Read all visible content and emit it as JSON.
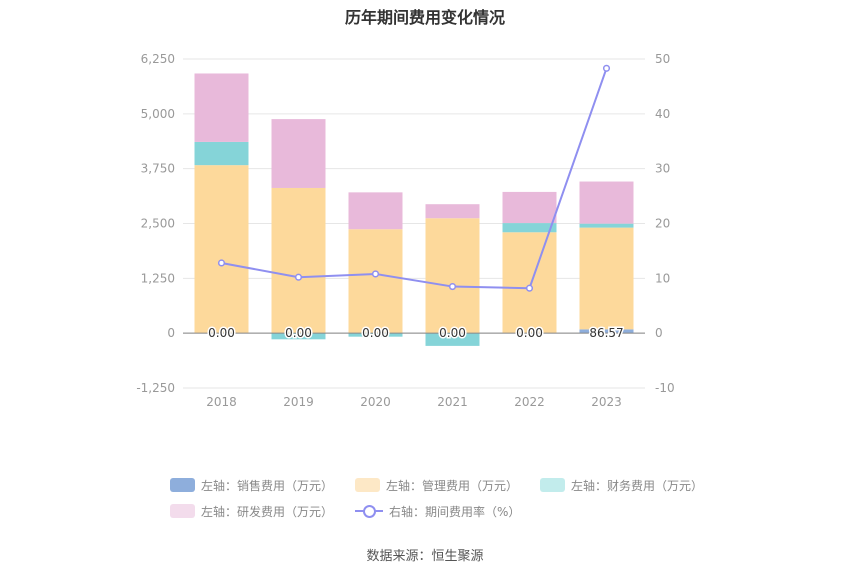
{
  "chart_data": {
    "type": "bar",
    "title": "历年期间费用变化情况",
    "categories": [
      "2018",
      "2019",
      "2020",
      "2021",
      "2022",
      "2023"
    ],
    "stacked": true,
    "series": [
      {
        "name": "左轴：销售费用（万元）",
        "axis": "left",
        "color": "#8eaedc",
        "values": [
          0,
          0,
          0,
          0,
          0,
          86.57
        ]
      },
      {
        "name": "左轴：管理费用（万元）",
        "axis": "left",
        "color": "#fdd99b",
        "values": [
          3830,
          3310,
          2370,
          2620,
          2300,
          2320
        ]
      },
      {
        "name": "左轴：财务费用（万元）",
        "axis": "left",
        "color": "#85d4d8",
        "values": [
          530,
          -140,
          -80,
          -290,
          210,
          90
        ]
      },
      {
        "name": "左轴：研发费用（万元）",
        "axis": "left",
        "color": "#e8b9da",
        "values": [
          1560,
          1570,
          840,
          320,
          710,
          960
        ]
      },
      {
        "name": "右轴：期间费用率（%）",
        "axis": "right",
        "type": "line",
        "color": "#8f8ff0",
        "values": [
          12.8,
          10.2,
          10.8,
          8.5,
          8.2,
          48.3
        ]
      }
    ],
    "data_labels": [
      "0.00",
      "0.00",
      "0.00",
      "0.00",
      "0.00",
      "86.57"
    ],
    "y_left": {
      "ticks": [
        "6,250",
        "5,000",
        "3,750",
        "2,500",
        "1,250",
        "0",
        "-1,250"
      ],
      "ylim": [
        -1250,
        6250
      ]
    },
    "y_right": {
      "ticks": [
        "50",
        "40",
        "30",
        "20",
        "10",
        "0",
        "-10"
      ],
      "ylim": [
        -10,
        50
      ]
    },
    "grid": true,
    "legend_position": "bottom"
  },
  "legend": {
    "row1": [
      {
        "label": "左轴：销售费用（万元）",
        "color": "#8eaedc"
      },
      {
        "label": "左轴：管理费用（万元）",
        "color": "#fde8c6"
      },
      {
        "label": "左轴：财务费用（万元）",
        "color": "#c2ecec"
      }
    ],
    "row2": [
      {
        "label": "左轴：研发费用（万元）",
        "color": "#f3dcec"
      },
      {
        "label": "右轴：期间费用率（%）",
        "color": "#8f8ff0"
      }
    ]
  },
  "source": "数据来源：恒生聚源"
}
